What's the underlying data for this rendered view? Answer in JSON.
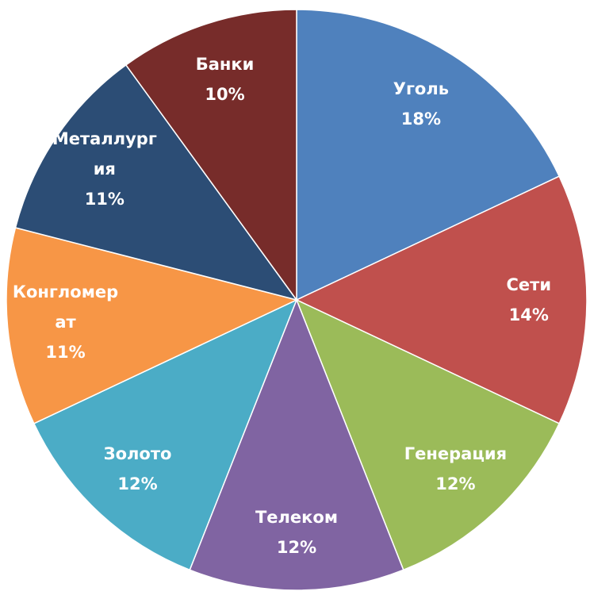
{
  "chart_data": {
    "type": "pie",
    "categories": [
      "Уголь",
      "Сети",
      "Генерация",
      "Телеком",
      "Золото",
      "Конгломерат",
      "Металлургия",
      "Банки"
    ],
    "values": [
      18,
      14,
      12,
      12,
      12,
      11,
      11,
      10
    ],
    "value_labels": [
      "18%",
      "14%",
      "12%",
      "12%",
      "12%",
      "11%",
      "11%",
      "10%"
    ],
    "colors": [
      "#4f81bd",
      "#c0504d",
      "#9bbb59",
      "#8064a2",
      "#4bacc6",
      "#f79646",
      "#2c4d75",
      "#772c2a"
    ]
  }
}
